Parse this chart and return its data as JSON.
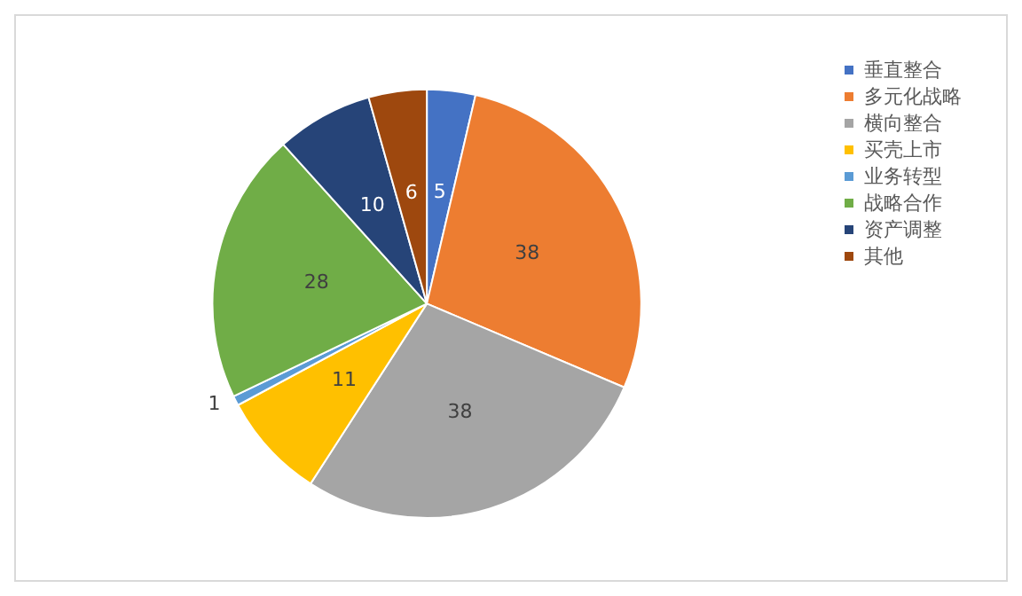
{
  "chart_data": {
    "type": "pie",
    "categories": [
      "垂直整合",
      "多元化战略",
      "横向整合",
      "买壳上市",
      "业务转型",
      "战略合作",
      "资产调整",
      "其他"
    ],
    "values": [
      5,
      38,
      38,
      11,
      1,
      28,
      10,
      6
    ],
    "colors": [
      "#4472c4",
      "#ed7d31",
      "#a5a5a5",
      "#ffc000",
      "#5b9bd5",
      "#70ad47",
      "#264478",
      "#9e480e"
    ],
    "data_labels": true,
    "legend": "right"
  }
}
